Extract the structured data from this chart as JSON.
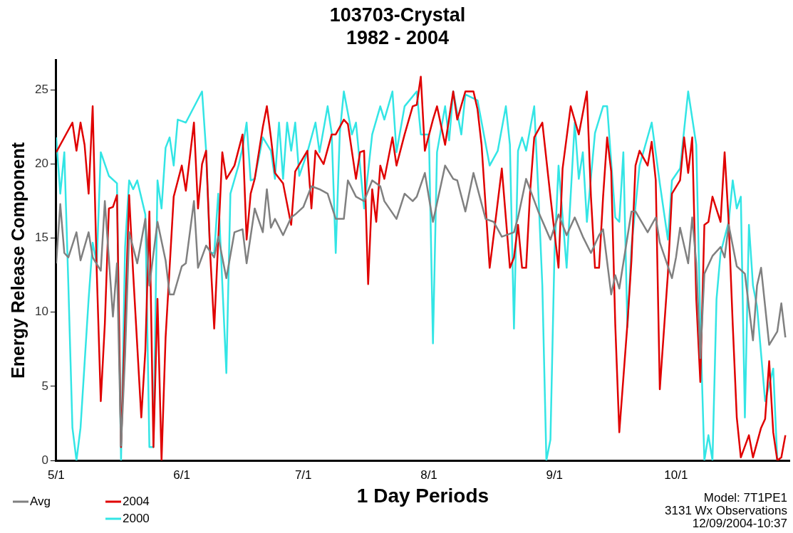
{
  "chart_data": {
    "type": "line",
    "title": "103703-Crystal",
    "subtitle": "1982 - 2004",
    "xlabel": "1 Day Periods",
    "ylabel": "Energy Release Component",
    "xlim": [
      "--05-01",
      "--10-29"
    ],
    "xticks": [
      {
        "value": "--05-01",
        "label": "5/1"
      },
      {
        "value": "--06-01",
        "label": "6/1"
      },
      {
        "value": "--07-01",
        "label": "7/1"
      },
      {
        "value": "--08-01",
        "label": "8/1"
      },
      {
        "value": "--09-01",
        "label": "9/1"
      },
      {
        "value": "--10-01",
        "label": "10/1"
      }
    ],
    "ylim": [
      0,
      27
    ],
    "yticks": [
      0,
      5,
      10,
      15,
      20,
      25
    ],
    "legend": "bottom left",
    "marker": "none",
    "annotations": [
      "Model: 7T1PE1",
      "3131 Wx Observations",
      "12/09/2004-10:37"
    ],
    "series": [
      {
        "name": "Avg",
        "color": "#808080",
        "x": [
          "--05-01",
          "--05-02",
          "--05-03",
          "--05-04",
          "--05-06",
          "--05-07",
          "--05-09",
          "--05-10",
          "--05-12",
          "--05-13",
          "--05-15",
          "--05-16",
          "--05-17",
          "--05-18",
          "--05-19",
          "--05-21",
          "--05-23",
          "--05-24",
          "--05-26",
          "--05-28",
          "--05-29",
          "--05-30",
          "--06-01",
          "--06-02",
          "--06-04",
          "--06-05",
          "--06-07",
          "--06-09",
          "--06-10",
          "--06-12",
          "--06-14",
          "--06-16",
          "--06-17",
          "--06-19",
          "--06-21",
          "--06-22",
          "--06-23",
          "--06-24",
          "--06-26",
          "--06-28",
          "--06-29",
          "--07-01",
          "--07-03",
          "--07-05",
          "--07-07",
          "--07-09",
          "--07-11",
          "--07-12",
          "--07-14",
          "--07-16",
          "--07-18",
          "--07-20",
          "--07-21",
          "--07-24",
          "--07-26",
          "--07-28",
          "--07-29",
          "--07-31",
          "--08-02",
          "--08-05",
          "--08-07",
          "--08-08",
          "--08-10",
          "--08-12",
          "--08-15",
          "--08-17",
          "--08-19",
          "--08-22",
          "--08-23",
          "--08-25",
          "--08-28",
          "--08-31",
          "--09-02",
          "--09-04",
          "--09-06",
          "--09-08",
          "--09-10",
          "--09-12",
          "--09-13",
          "--09-15",
          "--09-16",
          "--09-17",
          "--09-20",
          "--09-21",
          "--09-24",
          "--09-26",
          "--09-27",
          "--09-30",
          "--10-01",
          "--10-02",
          "--10-04",
          "--10-05",
          "--10-06",
          "--10-07",
          "--10-08",
          "--10-10",
          "--10-12",
          "--10-13",
          "--10-14",
          "--10-16",
          "--10-18",
          "--10-20",
          "--10-21",
          "--10-22",
          "--10-24",
          "--10-26",
          "--10-27",
          "--10-28"
        ],
        "values": [
          13.3,
          17.3,
          14,
          13.7,
          15.4,
          13.5,
          15.4,
          13.7,
          12.8,
          17.5,
          9.7,
          13.3,
          1,
          7.1,
          15.4,
          13.3,
          16.3,
          11.8,
          16.1,
          13.5,
          11.2,
          11.2,
          13.1,
          13.3,
          17.5,
          13,
          14.5,
          13.7,
          15.1,
          12.3,
          15.4,
          15.6,
          13.3,
          17,
          15.4,
          18.3,
          15.7,
          16.3,
          15.2,
          16.4,
          16.6,
          17.1,
          18.5,
          18.3,
          18,
          16.3,
          16.3,
          18.9,
          17.8,
          17.5,
          18.9,
          18.5,
          17.5,
          16.3,
          18,
          17.5,
          17.8,
          19.4,
          16.1,
          19.9,
          19,
          18.9,
          16.8,
          19.4,
          16.3,
          16.1,
          15.1,
          15.4,
          16.4,
          19,
          16.8,
          14.9,
          16.6,
          15.2,
          16.4,
          15.1,
          14,
          15.2,
          15.6,
          11.2,
          12.5,
          11.6,
          16.8,
          16.8,
          15.4,
          16.4,
          14.7,
          12.3,
          13.7,
          15.7,
          13.3,
          16.4,
          13.3,
          6.9,
          12.6,
          13.8,
          14.4,
          13.7,
          15.9,
          13.1,
          12.6,
          8.1,
          11.8,
          13,
          7.8,
          8.7,
          10.6,
          8.3
        ]
      },
      {
        "name": "2004",
        "color": "#e00000",
        "x": [
          "--05-01",
          "--05-05",
          "--05-06",
          "--05-07",
          "--05-08",
          "--05-09",
          "--05-10",
          "--05-11",
          "--05-12",
          "--05-13",
          "--05-14",
          "--05-15",
          "--05-16",
          "--05-17",
          "--05-19",
          "--05-20",
          "--05-22",
          "--05-23",
          "--05-24",
          "--05-25",
          "--05-26",
          "--05-27",
          "--05-28",
          "--05-30",
          "--06-01",
          "--06-02",
          "--06-04",
          "--06-05",
          "--06-06",
          "--06-07",
          "--06-08",
          "--06-09",
          "--06-10",
          "--06-11",
          "--06-12",
          "--06-14",
          "--06-16",
          "--06-17",
          "--06-18",
          "--06-19",
          "--06-21",
          "--06-22",
          "--06-23",
          "--06-24",
          "--06-26",
          "--06-28",
          "--06-29",
          "--07-02",
          "--07-03",
          "--07-04",
          "--07-06",
          "--07-08",
          "--07-09",
          "--07-11",
          "--07-12",
          "--07-14",
          "--07-15",
          "--07-16",
          "--07-17",
          "--07-18",
          "--07-19",
          "--07-20",
          "--07-21",
          "--07-23",
          "--07-24",
          "--07-26",
          "--07-28",
          "--07-29",
          "--07-30",
          "--07-31",
          "--08-02",
          "--08-03",
          "--08-05",
          "--08-07",
          "--08-08",
          "--08-10",
          "--08-12",
          "--08-13",
          "--08-14",
          "--08-16",
          "--08-17",
          "--08-19",
          "--08-21",
          "--08-22",
          "--08-23",
          "--08-24",
          "--08-25",
          "--08-26",
          "--08-27",
          "--08-29",
          "--08-31",
          "--09-02",
          "--09-03",
          "--09-05",
          "--09-07",
          "--09-09",
          "--09-10",
          "--09-11",
          "--09-12",
          "--09-13",
          "--09-14",
          "--09-15",
          "--09-16",
          "--09-17",
          "--09-19",
          "--09-20",
          "--09-21",
          "--09-22",
          "--09-24",
          "--09-25",
          "--09-26",
          "--09-27",
          "--09-29",
          "--09-30",
          "--10-02",
          "--10-03",
          "--10-04",
          "--10-05",
          "--10-06",
          "--10-07",
          "--10-08",
          "--10-09",
          "--10-10",
          "--10-12",
          "--10-13",
          "--10-14",
          "--10-15",
          "--10-16",
          "--10-17",
          "--10-19",
          "--10-20",
          "--10-22",
          "--10-23",
          "--10-24",
          "--10-25",
          "--10-26",
          "--10-27",
          "--10-28"
        ],
        "values": [
          20.8,
          22.8,
          20.9,
          22.8,
          21.3,
          18,
          23.9,
          12.8,
          4,
          9.2,
          17,
          17.1,
          17.9,
          0.9,
          17.9,
          12.6,
          2.9,
          7.4,
          16.8,
          0.9,
          10.9,
          0,
          8.3,
          17.8,
          19.9,
          18.2,
          22.8,
          17,
          20,
          20.9,
          14,
          8.9,
          14.9,
          20.8,
          19,
          19.9,
          22,
          14.9,
          18,
          19,
          22.5,
          23.9,
          21.8,
          19.4,
          18.7,
          15.9,
          19.5,
          20.9,
          17,
          20.9,
          20,
          22,
          22,
          23,
          22.7,
          19,
          20.8,
          20.9,
          11.9,
          18.3,
          16.1,
          19.9,
          19,
          21.8,
          19.9,
          22,
          23.9,
          24,
          25.9,
          20.9,
          23,
          23.9,
          21.3,
          24.9,
          23,
          24.9,
          24.9,
          23.7,
          21.3,
          13,
          15.2,
          19.7,
          13,
          13.7,
          15.9,
          13,
          13,
          18.2,
          21.8,
          22.8,
          17.8,
          13,
          19.7,
          23.9,
          22,
          24.9,
          17.8,
          13,
          13,
          17.8,
          21.8,
          19.5,
          9.2,
          1.9,
          9.2,
          13.5,
          19.9,
          20.9,
          19.9,
          21.5,
          18.9,
          4.8,
          12.6,
          18,
          18.9,
          21.8,
          19.4,
          21.8,
          10.9,
          5.3,
          15.9,
          16.1,
          17.8,
          16.1,
          20.8,
          16.1,
          9.2,
          2.9,
          0.2,
          1.7,
          0.2,
          2.2,
          2.8,
          6.7,
          1.9,
          0,
          0.2,
          1.7
        ]
      },
      {
        "name": "2000",
        "color": "#33e5e5",
        "x": [
          "--05-01",
          "--05-02",
          "--05-03",
          "--05-04",
          "--05-05",
          "--05-06",
          "--05-07",
          "--05-09",
          "--05-10",
          "--05-11",
          "--05-12",
          "--05-14",
          "--05-16",
          "--05-17",
          "--05-18",
          "--05-19",
          "--05-20",
          "--05-21",
          "--05-23",
          "--05-24",
          "--05-25",
          "--05-26",
          "--05-27",
          "--05-28",
          "--05-29",
          "--05-30",
          "--05-31",
          "--06-02",
          "--06-06",
          "--06-07",
          "--06-08",
          "--06-09",
          "--06-10",
          "--06-12",
          "--06-13",
          "--06-15",
          "--06-16",
          "--06-17",
          "--06-18",
          "--06-19",
          "--06-21",
          "--06-23",
          "--06-24",
          "--06-25",
          "--06-26",
          "--06-27",
          "--06-28",
          "--06-29",
          "--06-30",
          "--07-02",
          "--07-04",
          "--07-05",
          "--07-07",
          "--07-08",
          "--07-09",
          "--07-10",
          "--07-11",
          "--07-13",
          "--07-14",
          "--07-16",
          "--07-18",
          "--07-20",
          "--07-21",
          "--07-23",
          "--07-24",
          "--07-26",
          "--07-29",
          "--07-30",
          "--08-01",
          "--08-02",
          "--08-03",
          "--08-05",
          "--08-06",
          "--08-07",
          "--08-09",
          "--08-10",
          "--08-13",
          "--08-16",
          "--08-18",
          "--08-20",
          "--08-21",
          "--08-22",
          "--08-23",
          "--08-24",
          "--08-25",
          "--08-27",
          "--08-28",
          "--08-29",
          "--08-30",
          "--08-31",
          "--09-01",
          "--09-02",
          "--09-04",
          "--09-06",
          "--09-07",
          "--09-08",
          "--09-09",
          "--09-11",
          "--09-13",
          "--09-14",
          "--09-16",
          "--09-17",
          "--09-18",
          "--09-19",
          "--09-20",
          "--09-22",
          "--09-25",
          "--09-27",
          "--09-29",
          "--09-30",
          "--10-02",
          "--10-04",
          "--10-06",
          "--10-07",
          "--10-08",
          "--10-09",
          "--10-10",
          "--10-11",
          "--10-12",
          "--10-14",
          "--10-15",
          "--10-16",
          "--10-17",
          "--10-18",
          "--10-19",
          "--10-20",
          "--10-21",
          "--10-23",
          "--10-25",
          "--10-26"
        ],
        "values": [
          21.8,
          18,
          20.8,
          11.8,
          2.2,
          0,
          2.2,
          10.9,
          14.7,
          13.3,
          20.8,
          19.2,
          18.7,
          0,
          14.4,
          18.9,
          18.3,
          18.9,
          16.6,
          0.9,
          0.9,
          18.9,
          17,
          21.1,
          21.8,
          19.9,
          23,
          22.8,
          24.9,
          20.9,
          14,
          14,
          18,
          5.9,
          18,
          19.9,
          21.1,
          22.8,
          18.9,
          19,
          21.8,
          20.9,
          19,
          22.8,
          19,
          22.8,
          20.9,
          22.8,
          19.2,
          20.8,
          22.8,
          20.8,
          23.9,
          22.1,
          14,
          22.1,
          24.9,
          22,
          22.8,
          17,
          22,
          23.9,
          23,
          24.9,
          20.8,
          23.9,
          24.9,
          22,
          22,
          7.9,
          20.8,
          23.9,
          21.6,
          24.9,
          22,
          24.7,
          24.3,
          19.9,
          20.9,
          23.9,
          21.3,
          8.9,
          20.9,
          21.8,
          20.9,
          23.9,
          18.2,
          11.8,
          0,
          1.4,
          14,
          19.9,
          13,
          22.8,
          19,
          20.8,
          16.1,
          22.1,
          23.9,
          23.9,
          16.4,
          16.1,
          20.8,
          9,
          14.4,
          19.9,
          22.8,
          18.7,
          14.9,
          18.9,
          19.7,
          24.9,
          21.3,
          9.2,
          0,
          1.7,
          0,
          10.9,
          14,
          16.1,
          18.9,
          17,
          17.8,
          2.9,
          15.9,
          11.8,
          10.4,
          4,
          6.2,
          0
        ]
      }
    ]
  }
}
